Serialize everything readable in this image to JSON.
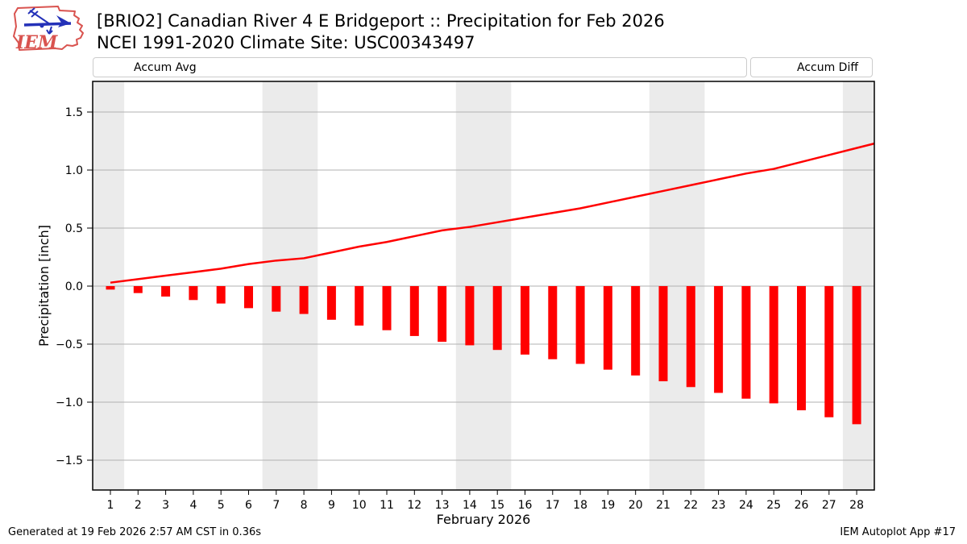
{
  "header": {
    "logo_text": "IEM",
    "title": "[BRIO2] Canadian River 4 E Bridgeport :: Precipitation for Feb 2026",
    "subtitle": "NCEI 1991-2020 Climate Site: USC00343497"
  },
  "legend": {
    "avg_label": "Accum Avg",
    "diff_label": "Accum Diff"
  },
  "footer": {
    "left": "Generated at 19 Feb 2026 2:57 AM CST in 0.36s",
    "right": "IEM Autoplot App #17"
  },
  "colors": {
    "series_red": "#ff0000",
    "band_gray": "#ebebeb",
    "grid_gray": "#b2b2b2",
    "frame_black": "#000000",
    "legend_border": "#cccccc",
    "logo_red": "#d9534f",
    "logo_blue": "#2431b8"
  },
  "chart_data": {
    "type": "line+bar",
    "title": "[BRIO2] Canadian River 4 E Bridgeport :: Precipitation for Feb 2026",
    "subtitle": "NCEI 1991-2020 Climate Site: USC00343497",
    "xlabel": "February 2026",
    "ylabel": "Precipitation [inch]",
    "x": [
      1,
      2,
      3,
      4,
      5,
      6,
      7,
      8,
      9,
      10,
      11,
      12,
      13,
      14,
      15,
      16,
      17,
      18,
      19,
      20,
      21,
      22,
      23,
      24,
      25,
      26,
      27,
      28
    ],
    "xlim": [
      0.36,
      28.64
    ],
    "ylim": [
      -1.76,
      1.76
    ],
    "yticks": [
      -1.5,
      -1.0,
      -0.5,
      0.0,
      0.5,
      1.0,
      1.5
    ],
    "ytick_labels": [
      "−1.5",
      "−1.0",
      "−0.5",
      "0.0",
      "0.5",
      "1.0",
      "1.5"
    ],
    "grid": "horizontal",
    "legend_position": "top",
    "weekend_bands": [
      [
        0.36,
        1.5
      ],
      [
        6.5,
        8.5
      ],
      [
        13.5,
        15.5
      ],
      [
        20.5,
        22.5
      ],
      [
        27.5,
        28.64
      ]
    ],
    "series": [
      {
        "name": "Accum Avg",
        "mark": "line",
        "color": "#ff0000",
        "values": [
          0.03,
          0.06,
          0.09,
          0.12,
          0.15,
          0.19,
          0.22,
          0.24,
          0.29,
          0.34,
          0.38,
          0.43,
          0.48,
          0.51,
          0.55,
          0.59,
          0.63,
          0.67,
          0.72,
          0.77,
          0.82,
          0.87,
          0.92,
          0.97,
          1.01,
          1.07,
          1.13,
          1.19
        ]
      },
      {
        "name": "Accum Diff",
        "mark": "bar",
        "color": "#ff0000",
        "values": [
          -0.03,
          -0.06,
          -0.09,
          -0.12,
          -0.15,
          -0.19,
          -0.22,
          -0.24,
          -0.29,
          -0.34,
          -0.38,
          -0.43,
          -0.48,
          -0.51,
          -0.55,
          -0.59,
          -0.63,
          -0.67,
          -0.72,
          -0.77,
          -0.82,
          -0.87,
          -0.92,
          -0.97,
          -1.01,
          -1.07,
          -1.13,
          -1.19
        ]
      }
    ]
  }
}
